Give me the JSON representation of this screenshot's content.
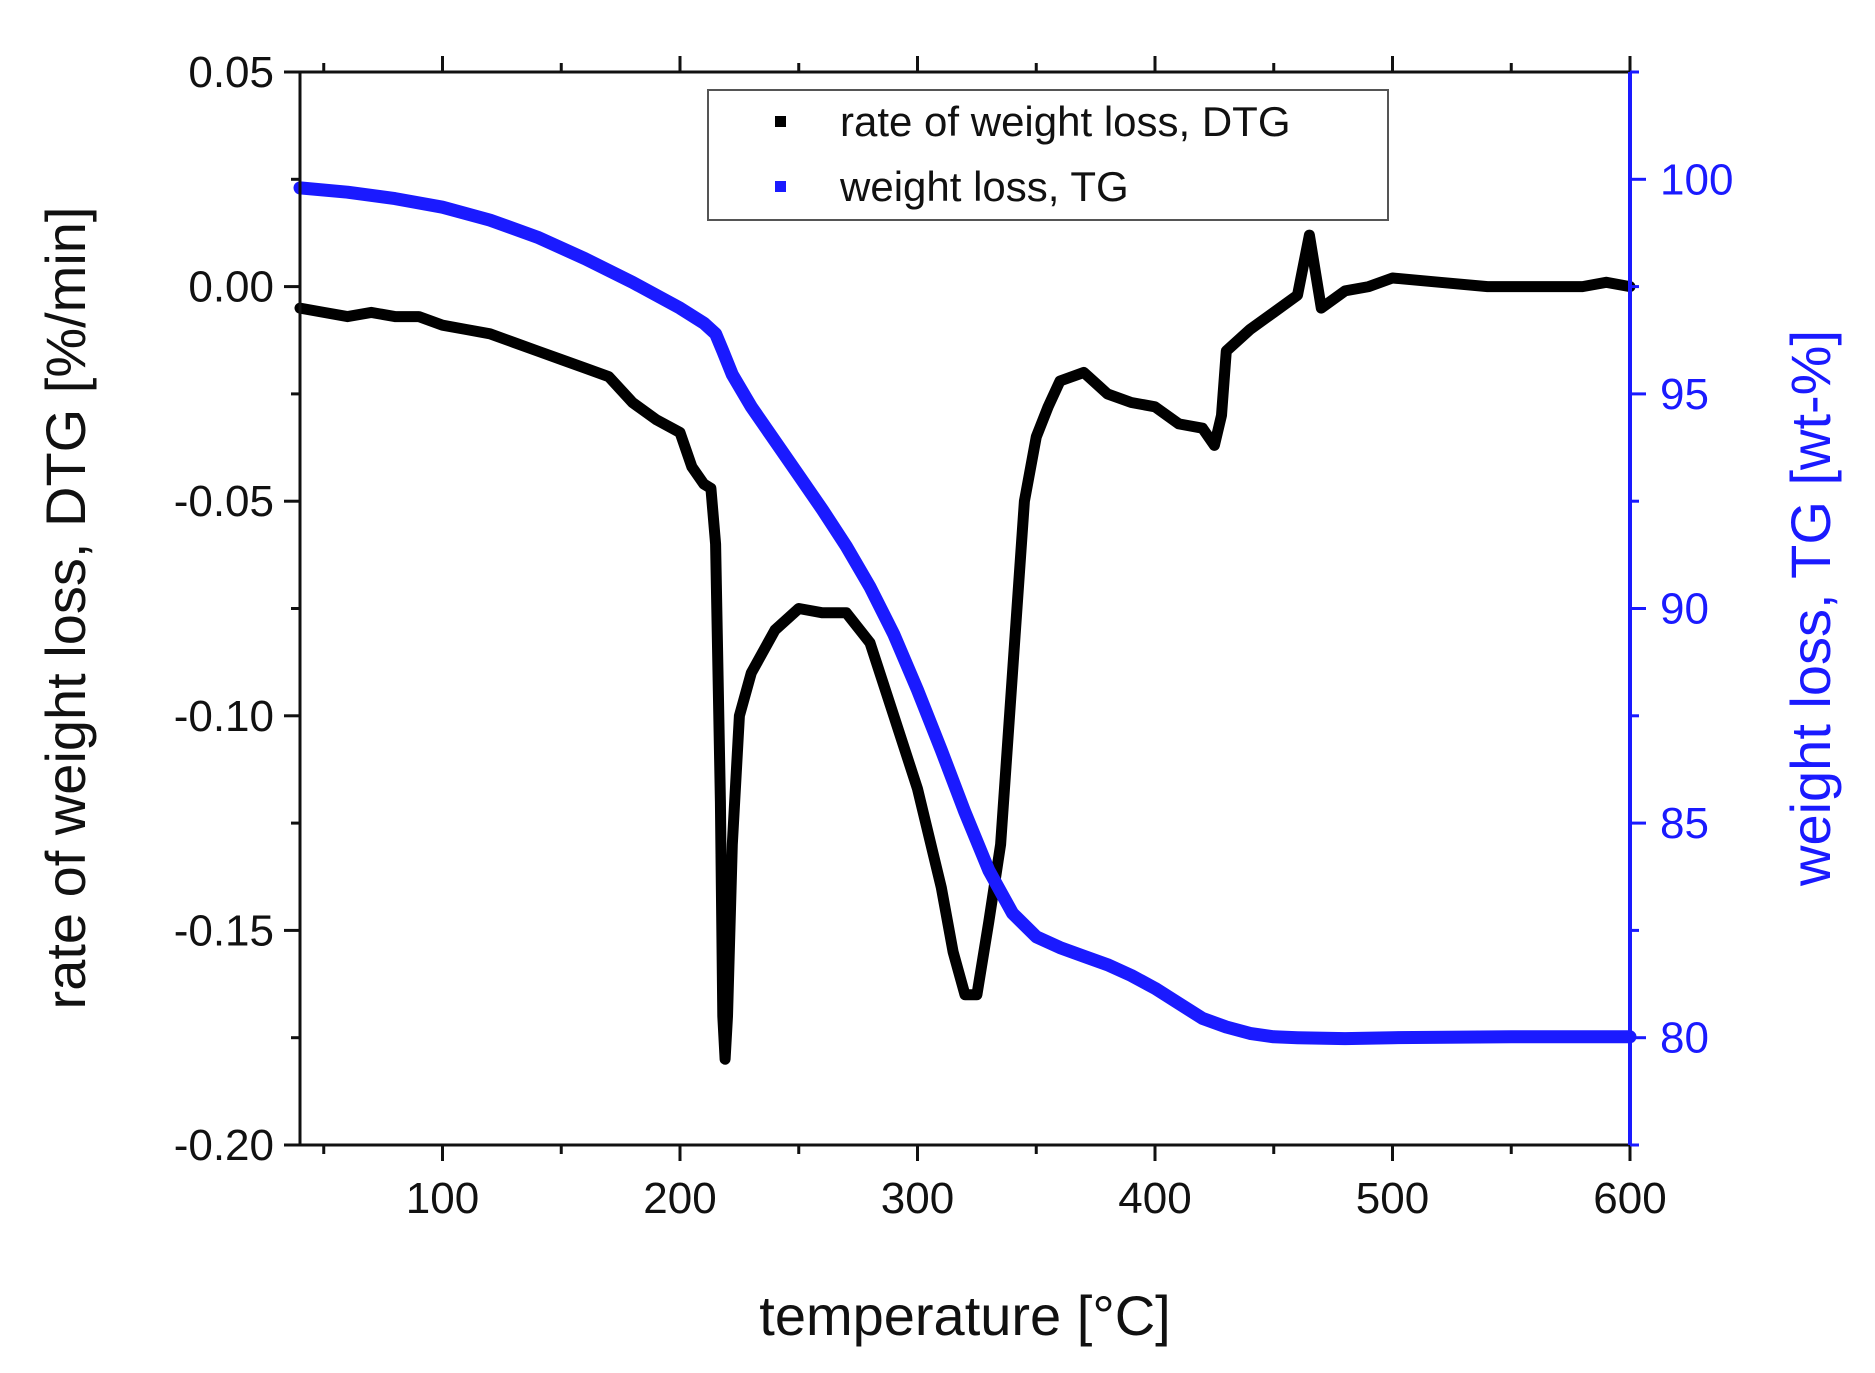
{
  "chart_data": {
    "type": "line",
    "title": "",
    "xlabel": "temperature [°C]",
    "ylabel_left": "rate of weight loss, DTG [%/min]",
    "ylabel_right": "weight loss, TG [wt-%]",
    "xlim": [
      40,
      600
    ],
    "ylim_left": [
      -0.2,
      0.05
    ],
    "ylim_right": [
      77.5,
      102.5
    ],
    "x_ticks": [
      "100",
      "200",
      "300",
      "400",
      "500",
      "600"
    ],
    "x_tick_values": [
      100,
      200,
      300,
      400,
      500,
      600
    ],
    "y_left_ticks": [
      "0.05",
      "0.00",
      "-0.05",
      "-0.10",
      "-0.15",
      "-0.20"
    ],
    "y_left_tick_values": [
      0.05,
      0.0,
      -0.05,
      -0.1,
      -0.15,
      -0.2
    ],
    "y_right_ticks": [
      "100",
      "95",
      "90",
      "85",
      "80"
    ],
    "y_right_tick_values": [
      100,
      95,
      90,
      85,
      80
    ],
    "legend": {
      "placement": "top-center"
    },
    "grid": false,
    "colors": {
      "dtg": "#000000",
      "tg": "#1a1aff",
      "axis": "#111111",
      "right_axis": "#1a1aff"
    },
    "series": [
      {
        "name": "rate of weight loss, DTG",
        "axis": "left",
        "color": "#000000",
        "x": [
          40,
          50,
          60,
          70,
          80,
          90,
          100,
          110,
          120,
          130,
          140,
          150,
          160,
          170,
          180,
          190,
          200,
          205,
          210,
          213,
          215,
          217,
          218,
          219,
          220,
          222,
          225,
          230,
          240,
          250,
          260,
          270,
          280,
          290,
          300,
          310,
          315,
          320,
          325,
          330,
          335,
          340,
          345,
          350,
          355,
          360,
          370,
          380,
          390,
          400,
          410,
          420,
          425,
          428,
          430,
          440,
          450,
          460,
          465,
          470,
          480,
          490,
          500,
          520,
          540,
          560,
          580,
          590,
          600
        ],
        "y": [
          -0.005,
          -0.006,
          -0.007,
          -0.006,
          -0.007,
          -0.007,
          -0.009,
          -0.01,
          -0.011,
          -0.013,
          -0.015,
          -0.017,
          -0.019,
          -0.021,
          -0.027,
          -0.031,
          -0.034,
          -0.042,
          -0.046,
          -0.047,
          -0.06,
          -0.12,
          -0.17,
          -0.18,
          -0.17,
          -0.13,
          -0.1,
          -0.09,
          -0.08,
          -0.075,
          -0.076,
          -0.076,
          -0.083,
          -0.1,
          -0.117,
          -0.14,
          -0.155,
          -0.165,
          -0.165,
          -0.148,
          -0.13,
          -0.09,
          -0.05,
          -0.035,
          -0.028,
          -0.022,
          -0.02,
          -0.025,
          -0.027,
          -0.028,
          -0.032,
          -0.033,
          -0.037,
          -0.03,
          -0.015,
          -0.01,
          -0.006,
          -0.002,
          0.012,
          -0.005,
          -0.001,
          0.0,
          0.002,
          0.001,
          0.0,
          0.0,
          0.0,
          0.001,
          0.0
        ]
      },
      {
        "name": "weight loss, TG",
        "axis": "right",
        "color": "#1a1aff",
        "x": [
          40,
          60,
          80,
          100,
          120,
          140,
          160,
          180,
          200,
          210,
          215,
          218,
          222,
          230,
          240,
          250,
          260,
          270,
          280,
          290,
          300,
          310,
          320,
          330,
          340,
          350,
          360,
          370,
          380,
          390,
          400,
          410,
          420,
          430,
          440,
          450,
          460,
          480,
          500,
          550,
          600
        ],
        "y": [
          99.8,
          99.7,
          99.55,
          99.35,
          99.05,
          98.65,
          98.15,
          97.6,
          97.0,
          96.65,
          96.4,
          96.0,
          95.45,
          94.7,
          93.9,
          93.1,
          92.3,
          91.45,
          90.5,
          89.4,
          88.1,
          86.7,
          85.25,
          83.9,
          82.9,
          82.35,
          82.1,
          81.9,
          81.7,
          81.45,
          81.15,
          80.8,
          80.45,
          80.25,
          80.1,
          80.02,
          80.0,
          79.98,
          80.0,
          80.02,
          80.02
        ]
      }
    ]
  }
}
